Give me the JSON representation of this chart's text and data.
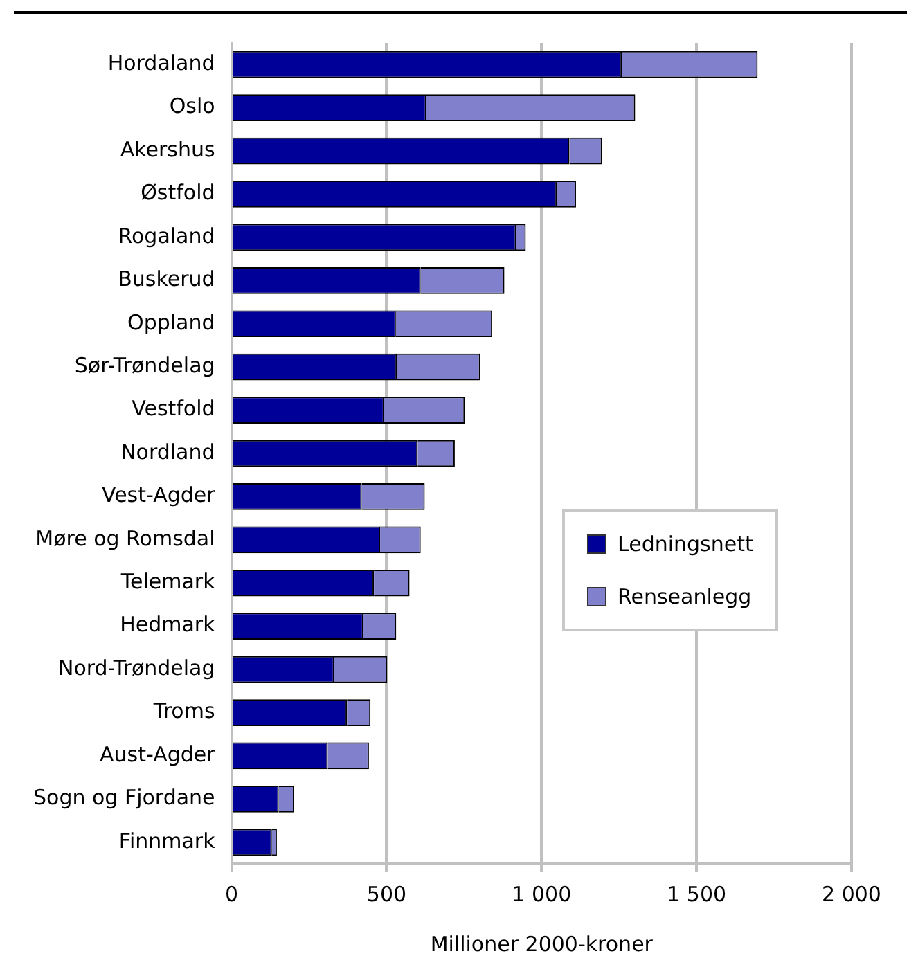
{
  "chart_data": {
    "type": "bar",
    "orientation": "horizontal",
    "stacked": true,
    "xlabel": "Millioner 2000-kroner",
    "categories": [
      "Hordaland",
      "Oslo",
      "Akershus",
      "Østfold",
      "Rogaland",
      "Buskerud",
      "Oppland",
      "Sør-Trøndelag",
      "Vestfold",
      "Nordland",
      "Vest-Agder",
      "Møre og Romsdal",
      "Telemark",
      "Hedmark",
      "Nord-Trøndelag",
      "Troms",
      "Aust-Agder",
      "Sogn og Fjordane",
      "Finnmark"
    ],
    "series": [
      {
        "name": "Ledningsnett",
        "color": "#000099",
        "values": [
          1259,
          628,
          1090,
          1049,
          918,
          610,
          530,
          533,
          492,
          600,
          420,
          479,
          459,
          425,
          331,
          372,
          310,
          152,
          130
        ]
      },
      {
        "name": "Renseanlegg",
        "color": "#8080cc",
        "values": [
          438,
          674,
          105,
          62,
          31,
          270,
          311,
          269,
          260,
          120,
          203,
          131,
          115,
          106,
          171,
          76,
          133,
          50,
          16
        ]
      }
    ],
    "xlim": [
      0,
      2000
    ],
    "xticks": [
      0,
      500,
      {
        "value": 1000,
        "label": "1 000"
      },
      {
        "value": 1500,
        "label": "1 500"
      },
      {
        "value": 2000,
        "label": "2 000"
      }
    ],
    "grid": "x",
    "legend": "right"
  }
}
